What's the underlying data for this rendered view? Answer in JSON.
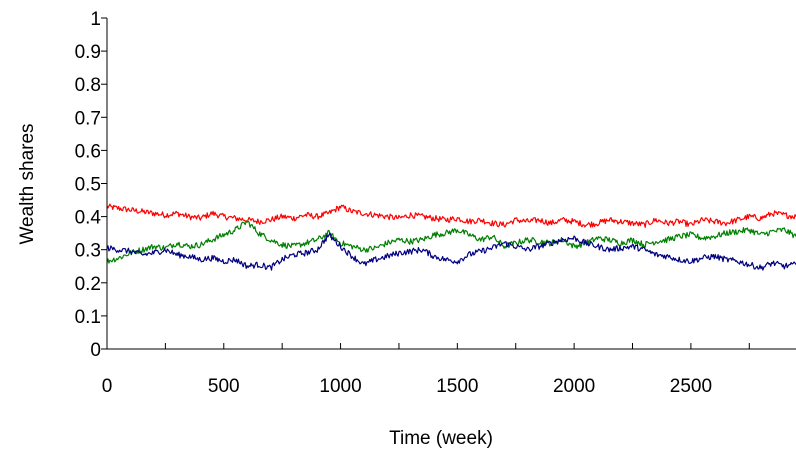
{
  "chart_data": {
    "type": "line",
    "title": "",
    "xlabel": "Time (week)",
    "ylabel": "Wealth shares",
    "xlim": [
      0,
      2950
    ],
    "ylim": [
      0,
      1
    ],
    "x_ticks": [
      "0",
      "500",
      "1000",
      "1500",
      "2000",
      "2500"
    ],
    "x_tick_values": [
      0,
      500,
      1000,
      1500,
      2000,
      2500
    ],
    "x_minor_tick_values": [
      250,
      750,
      1250,
      1750,
      2250,
      2750
    ],
    "y_ticks": [
      "0",
      "0.1",
      "0.2",
      "0.3",
      "0.4",
      "0.5",
      "0.6",
      "0.7",
      "0.8",
      "0.9",
      "1"
    ],
    "y_tick_values": [
      0,
      0.1,
      0.2,
      0.3,
      0.4,
      0.5,
      0.6,
      0.7,
      0.8,
      0.9,
      1.0
    ],
    "grid": false,
    "legend": "none",
    "series": [
      {
        "color": "#ff0000",
        "x": [
          0,
          50,
          100,
          150,
          200,
          250,
          300,
          350,
          400,
          450,
          500,
          550,
          600,
          650,
          700,
          750,
          800,
          850,
          900,
          950,
          1000,
          1050,
          1100,
          1150,
          1200,
          1250,
          1300,
          1350,
          1400,
          1450,
          1500,
          1550,
          1600,
          1650,
          1700,
          1750,
          1800,
          1850,
          1900,
          1950,
          2000,
          2050,
          2100,
          2150,
          2200,
          2250,
          2300,
          2350,
          2400,
          2450,
          2500,
          2550,
          2600,
          2650,
          2700,
          2750,
          2800,
          2850,
          2900,
          2950
        ],
        "y": [
          0.43,
          0.425,
          0.42,
          0.415,
          0.41,
          0.405,
          0.41,
          0.4,
          0.395,
          0.41,
          0.4,
          0.395,
          0.39,
          0.385,
          0.39,
          0.4,
          0.395,
          0.405,
          0.4,
          0.41,
          0.43,
          0.415,
          0.41,
          0.405,
          0.4,
          0.395,
          0.405,
          0.4,
          0.395,
          0.39,
          0.395,
          0.385,
          0.39,
          0.38,
          0.375,
          0.39,
          0.385,
          0.39,
          0.38,
          0.39,
          0.385,
          0.375,
          0.38,
          0.39,
          0.385,
          0.38,
          0.375,
          0.39,
          0.38,
          0.385,
          0.375,
          0.39,
          0.385,
          0.38,
          0.39,
          0.4,
          0.395,
          0.41,
          0.405,
          0.4
        ]
      },
      {
        "color": "#008000",
        "x": [
          0,
          50,
          100,
          150,
          200,
          250,
          300,
          350,
          400,
          450,
          500,
          550,
          600,
          650,
          700,
          750,
          800,
          850,
          900,
          950,
          1000,
          1050,
          1100,
          1150,
          1200,
          1250,
          1300,
          1350,
          1400,
          1450,
          1500,
          1550,
          1600,
          1650,
          1700,
          1750,
          1800,
          1850,
          1900,
          1950,
          2000,
          2050,
          2100,
          2150,
          2200,
          2250,
          2300,
          2350,
          2400,
          2450,
          2500,
          2550,
          2600,
          2650,
          2700,
          2750,
          2800,
          2850,
          2900,
          2950
        ],
        "y": [
          0.265,
          0.275,
          0.29,
          0.3,
          0.31,
          0.305,
          0.32,
          0.31,
          0.315,
          0.33,
          0.345,
          0.36,
          0.385,
          0.35,
          0.33,
          0.315,
          0.31,
          0.32,
          0.33,
          0.35,
          0.32,
          0.31,
          0.3,
          0.305,
          0.32,
          0.33,
          0.325,
          0.33,
          0.345,
          0.35,
          0.36,
          0.345,
          0.33,
          0.34,
          0.31,
          0.32,
          0.33,
          0.325,
          0.32,
          0.33,
          0.31,
          0.32,
          0.335,
          0.33,
          0.32,
          0.33,
          0.315,
          0.325,
          0.33,
          0.34,
          0.345,
          0.335,
          0.34,
          0.35,
          0.355,
          0.36,
          0.345,
          0.355,
          0.36,
          0.34
        ]
      },
      {
        "color": "#000080",
        "x": [
          0,
          50,
          100,
          150,
          200,
          250,
          300,
          350,
          400,
          450,
          500,
          550,
          600,
          650,
          700,
          750,
          800,
          850,
          900,
          950,
          1000,
          1050,
          1100,
          1150,
          1200,
          1250,
          1300,
          1350,
          1400,
          1450,
          1500,
          1550,
          1600,
          1650,
          1700,
          1750,
          1800,
          1850,
          1900,
          1950,
          2000,
          2050,
          2100,
          2150,
          2200,
          2250,
          2300,
          2350,
          2400,
          2450,
          2500,
          2550,
          2600,
          2650,
          2700,
          2750,
          2800,
          2850,
          2900,
          2950
        ],
        "y": [
          0.305,
          0.3,
          0.295,
          0.285,
          0.29,
          0.3,
          0.285,
          0.28,
          0.27,
          0.275,
          0.265,
          0.27,
          0.25,
          0.255,
          0.245,
          0.27,
          0.285,
          0.29,
          0.3,
          0.345,
          0.31,
          0.28,
          0.255,
          0.27,
          0.28,
          0.29,
          0.295,
          0.3,
          0.28,
          0.27,
          0.265,
          0.285,
          0.295,
          0.305,
          0.32,
          0.31,
          0.3,
          0.31,
          0.32,
          0.33,
          0.335,
          0.32,
          0.31,
          0.3,
          0.305,
          0.31,
          0.3,
          0.285,
          0.28,
          0.27,
          0.265,
          0.275,
          0.28,
          0.27,
          0.265,
          0.255,
          0.245,
          0.26,
          0.25,
          0.255
        ]
      }
    ]
  }
}
